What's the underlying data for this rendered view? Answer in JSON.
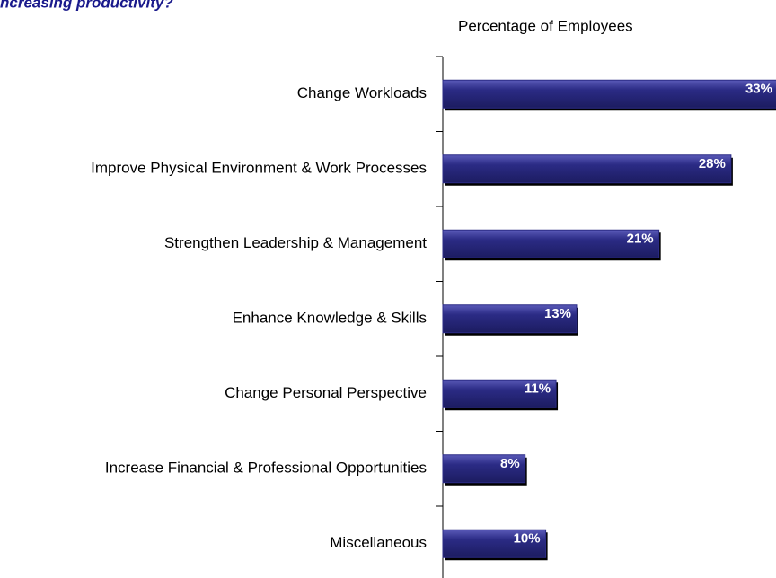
{
  "chart_data": {
    "type": "bar",
    "orientation": "horizontal",
    "title": "ncreasing productivity?",
    "x_label": "Percentage of Employees",
    "categories": [
      "Change Workloads",
      "Improve Physical Environment & Work Processes",
      "Strengthen Leadership & Management",
      "Enhance Knowledge & Skills",
      "Change Personal Perspective",
      "Increase Financial & Professional Opportunities",
      "Miscellaneous"
    ],
    "values": [
      33,
      28,
      21,
      13,
      11,
      8,
      10
    ],
    "value_labels": [
      "33%",
      "28%",
      "21%",
      "13%",
      "11%",
      "8%",
      "10%"
    ],
    "color": "#2b2b85",
    "xlim": [
      0,
      35
    ]
  }
}
